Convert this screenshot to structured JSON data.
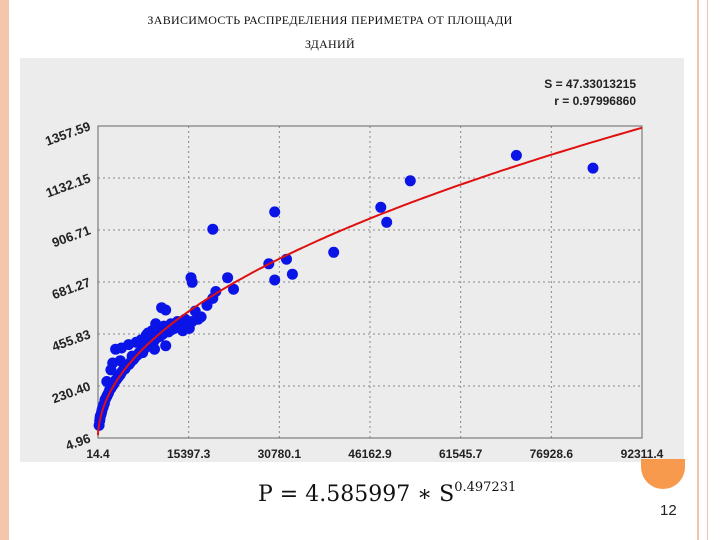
{
  "slide": {
    "title_line1": "ЗАВИСИМОСТЬ РАСПРЕДЕЛЕНИЯ ПЕРИМЕТРА ОТ ПЛОЩАДИ",
    "title_line2": "ЗДАНИЙ",
    "formula_main": "P = 4.585997 ∗ S",
    "formula_exp": "0.497231",
    "page_number": "12"
  },
  "chart_data": {
    "type": "scatter",
    "annotations": [
      "S = 47.33013215",
      "r = 0.97996860"
    ],
    "x_ticks": [
      "14.4",
      "15397.3",
      "30780.1",
      "46162.9",
      "61545.7",
      "76928.6",
      "92311.4"
    ],
    "y_ticks": [
      "4.96",
      "230.40",
      "455.83",
      "681.27",
      "906.71",
      "1132.15",
      "1357.59"
    ],
    "xlim": [
      14.4,
      92311.4
    ],
    "ylim": [
      4.96,
      1357.59
    ],
    "grid": true,
    "colors": {
      "points": "#0a14e6",
      "fit": "#e01010",
      "grid": "#888888",
      "background": "#ececec"
    },
    "fit": {
      "a": 4.585997,
      "b": 0.497231
    },
    "points": [
      [
        200,
        60
      ],
      [
        300,
        80
      ],
      [
        350,
        90
      ],
      [
        400,
        100
      ],
      [
        500,
        105
      ],
      [
        600,
        115
      ],
      [
        700,
        125
      ],
      [
        800,
        135
      ],
      [
        900,
        140
      ],
      [
        1000,
        150
      ],
      [
        1100,
        155
      ],
      [
        1200,
        170
      ],
      [
        1300,
        175
      ],
      [
        1500,
        185
      ],
      [
        1600,
        190
      ],
      [
        1800,
        200
      ],
      [
        2000,
        215
      ],
      [
        2200,
        220
      ],
      [
        2400,
        230
      ],
      [
        2600,
        235
      ],
      [
        2800,
        245
      ],
      [
        3000,
        255
      ],
      [
        3200,
        260
      ],
      [
        3500,
        270
      ],
      [
        3800,
        280
      ],
      [
        4000,
        290
      ],
      [
        4300,
        300
      ],
      [
        4600,
        305
      ],
      [
        5000,
        320
      ],
      [
        5300,
        325
      ],
      [
        5600,
        335
      ],
      [
        6000,
        345
      ],
      [
        6300,
        355
      ],
      [
        6700,
        365
      ],
      [
        7000,
        375
      ],
      [
        7500,
        385
      ],
      [
        8000,
        395
      ],
      [
        8500,
        410
      ],
      [
        9000,
        420
      ],
      [
        9500,
        425
      ],
      [
        10000,
        440
      ],
      [
        10500,
        445
      ],
      [
        11000,
        455
      ],
      [
        12000,
        465
      ],
      [
        12500,
        475
      ],
      [
        13000,
        480
      ],
      [
        14000,
        490
      ],
      [
        15000,
        500
      ],
      [
        16000,
        510
      ],
      [
        17000,
        520
      ],
      [
        3000,
        390
      ],
      [
        4000,
        395
      ],
      [
        5200,
        410
      ],
      [
        6500,
        420
      ],
      [
        7300,
        430
      ],
      [
        8200,
        450
      ],
      [
        9200,
        470
      ],
      [
        10300,
        480
      ],
      [
        11200,
        490
      ],
      [
        12400,
        500
      ],
      [
        13500,
        510
      ],
      [
        14800,
        520
      ],
      [
        2500,
        330
      ],
      [
        3800,
        340
      ],
      [
        5800,
        360
      ],
      [
        7600,
        375
      ],
      [
        9600,
        390
      ],
      [
        11500,
        405
      ],
      [
        1500,
        250
      ],
      [
        2200,
        300
      ],
      [
        8500,
        460
      ],
      [
        9800,
        500
      ],
      [
        10800,
        570
      ],
      [
        11500,
        560
      ],
      [
        14400,
        470
      ],
      [
        15500,
        480
      ],
      [
        16500,
        555
      ],
      [
        17500,
        530
      ],
      [
        18500,
        580
      ],
      [
        19500,
        610
      ],
      [
        15800,
        700
      ],
      [
        16000,
        680
      ],
      [
        20000,
        640
      ],
      [
        23000,
        650
      ],
      [
        22000,
        700
      ],
      [
        19500,
        910
      ],
      [
        29000,
        760
      ],
      [
        30000,
        690
      ],
      [
        32000,
        780
      ],
      [
        33000,
        715
      ],
      [
        30000,
        985
      ],
      [
        40000,
        810
      ],
      [
        48000,
        1005
      ],
      [
        49000,
        940
      ],
      [
        53000,
        1120
      ],
      [
        71000,
        1230
      ],
      [
        84000,
        1175
      ]
    ]
  }
}
